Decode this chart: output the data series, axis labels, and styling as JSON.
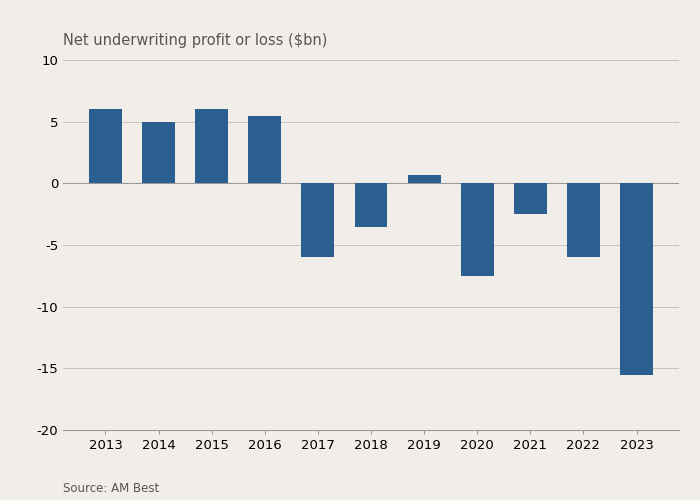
{
  "years": [
    2013,
    2014,
    2015,
    2016,
    2017,
    2018,
    2019,
    2020,
    2021,
    2022,
    2023
  ],
  "values": [
    6.0,
    5.0,
    6.0,
    5.5,
    -6.0,
    -3.5,
    0.7,
    -7.5,
    -2.5,
    -6.0,
    -15.5
  ],
  "bar_color": "#2a5f8f",
  "background_color": "#f1ede8",
  "ylabel": "Net underwriting profit or loss ($bn)",
  "source": "Source: AM Best",
  "ylim": [
    -20,
    10
  ],
  "yticks": [
    -20,
    -15,
    -10,
    -5,
    0,
    5,
    10
  ],
  "grid_color": "#c8c4be",
  "title_fontsize": 10.5,
  "axis_fontsize": 9.5,
  "source_fontsize": 8.5,
  "bar_width": 0.62
}
